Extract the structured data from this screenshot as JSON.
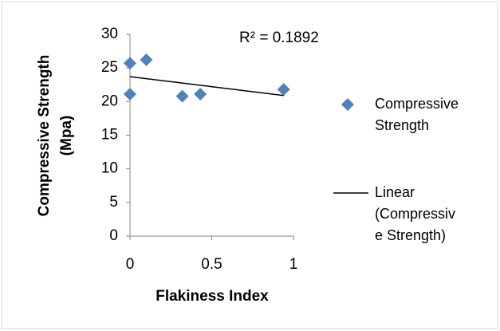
{
  "chart_data": {
    "type": "scatter",
    "x_label": "Flakiness Index",
    "y_label": [
      "Compressive Strength",
      "(Mpa)"
    ],
    "annotation": "R² = 0.1892",
    "series": [
      {
        "name": "Compressive Strength",
        "color": "#4f81bd",
        "x": [
          0,
          0,
          0.1,
          0.32,
          0.43,
          0.94
        ],
        "values": [
          25.7,
          21.1,
          26.2,
          20.8,
          21.1,
          21.8
        ]
      }
    ],
    "trendline": {
      "name": "Linear (Compressive Strength)",
      "color": "#000000",
      "x": [
        0,
        0.94
      ],
      "values": [
        23.7,
        20.9
      ]
    },
    "xlim": [
      0,
      1
    ],
    "xticks": [
      0,
      0.5,
      1
    ],
    "ylim": [
      0,
      30
    ],
    "yticks": [
      0,
      5,
      10,
      15,
      20,
      25,
      30
    ],
    "grid": false,
    "legend": "right"
  }
}
